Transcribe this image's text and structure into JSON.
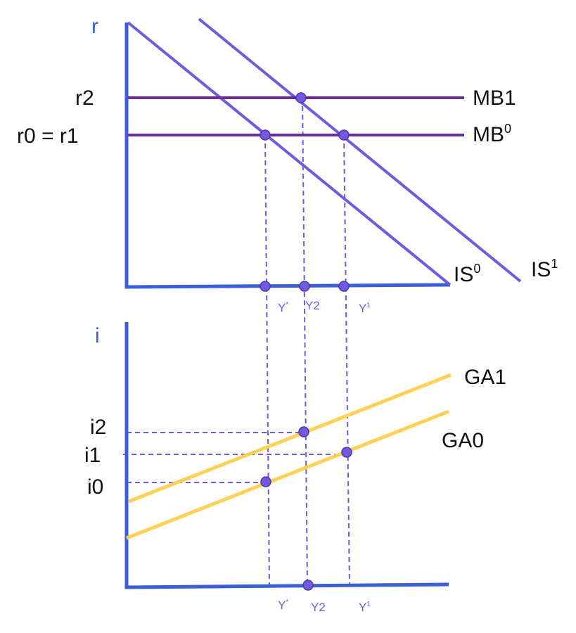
{
  "top_panel": {
    "y_axis_label": "r",
    "rate_labels": [
      "r2",
      "r0 = r1"
    ],
    "curves": {
      "mb1": "MB1",
      "mb0": "MB",
      "mb0_sup": "0",
      "is0": "IS",
      "is0_sup": "0",
      "is1": "IS",
      "is1_sup": "1"
    },
    "x_labels": {
      "ystar": "Y",
      "ystar_sup": "*",
      "y2": "Y2",
      "y1": "Y",
      "y1_sup": "1"
    }
  },
  "bottom_panel": {
    "y_axis_label": "i",
    "rate_labels": [
      "i2",
      "i1",
      "i0"
    ],
    "curves": {
      "ga1": "GA1",
      "ga0": "GA0"
    },
    "x_labels": {
      "ystar": "Y",
      "ystar_sup": "*",
      "y2": "Y2",
      "y1": "Y",
      "y1_sup": "1"
    }
  },
  "colors": {
    "axis": "#3a5fd9",
    "is": "#7359e0",
    "mb": "#6a2c9e",
    "ga": "#ffd257"
  }
}
